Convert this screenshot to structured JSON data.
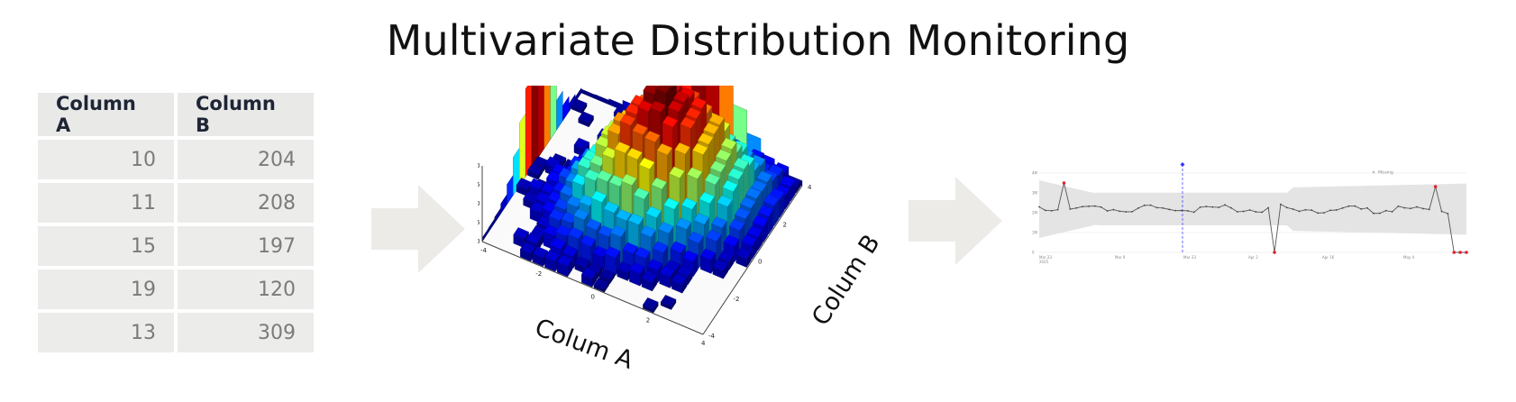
{
  "title": "Multivariate Distribution Monitoring",
  "table": {
    "headers": [
      "Column A",
      "Column B"
    ],
    "rows": [
      [
        "10",
        "204"
      ],
      [
        "11",
        "208"
      ],
      [
        "15",
        "197"
      ],
      [
        "19",
        "120"
      ],
      [
        "13",
        "309"
      ]
    ]
  },
  "hist3d": {
    "x_label": "Colum A",
    "y_label": "Colum B",
    "z_ticks": [
      "0.20",
      "0.15",
      "0.10",
      "0.05",
      "0.00"
    ],
    "x_ticks": [
      "-4",
      "-2",
      "0",
      "2",
      "4"
    ],
    "y_ticks": [
      "-4",
      "-2",
      "0",
      "2",
      "4"
    ]
  },
  "timeseries": {
    "legend": "Missing",
    "y_ticks": [
      "4M",
      "3M",
      "2M",
      "1M",
      "0"
    ],
    "x_ticks": [
      "Mar 23\n2025",
      "Mar 9",
      "Mar 23",
      "Apr 2",
      "Apr 16",
      "May 4"
    ],
    "colors": {
      "line": "#555555",
      "band": "#e4e4e4",
      "anomaly": "#e0202a",
      "marker": "#3333ff"
    }
  },
  "colors": {
    "arrow": "#ecebe8",
    "table_cell": "#ececea"
  }
}
